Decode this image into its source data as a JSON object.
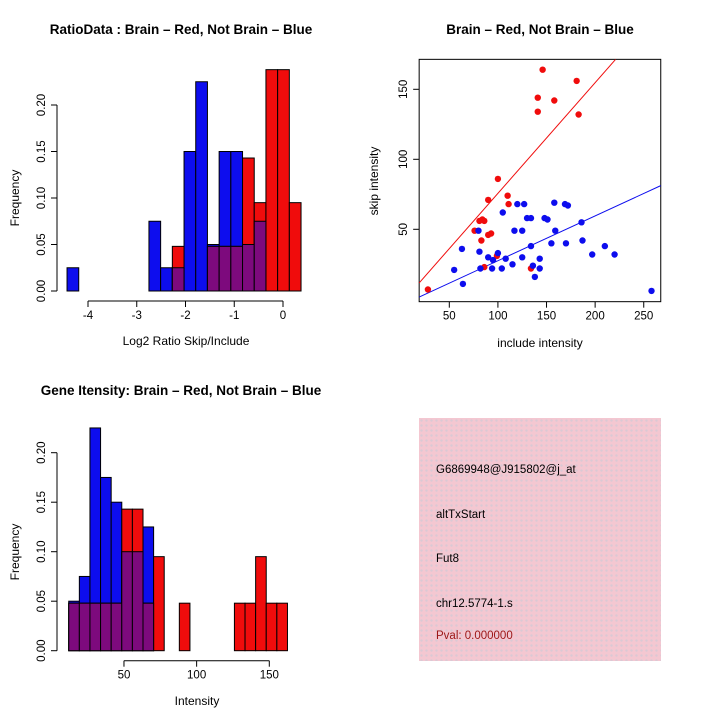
{
  "colors": {
    "red": "#f00c0c",
    "blue": "#0d0dee",
    "purple": "#7d0a7d",
    "dark_red": "#9c1616",
    "pink_background": "#f4c7d1",
    "axis_black": "#000000"
  },
  "chart_data": [
    {
      "id": "ratio_hist",
      "type": "bar",
      "title": "RatioData : Brain – Red, Not Brain – Blue",
      "xlabel": "Log2 Ratio Skip/Include",
      "ylabel": "Frequency",
      "xticks": [
        -4,
        -3,
        -2,
        -1,
        0
      ],
      "yticks": [
        0,
        0.05,
        0.1,
        0.15,
        0.2
      ],
      "ytick_labels": [
        "0.00",
        "0.05",
        "0.10",
        "0.15",
        "0.20"
      ],
      "xlim": [
        -4.64,
        0.39
      ],
      "ylim": [
        0,
        0.246
      ],
      "grid": false,
      "series": [
        {
          "name": "Not Brain (blue)",
          "color_key": "blue",
          "bars": [
            {
              "x0": -4.43,
              "x1": -4.19,
              "h": 0.025
            },
            {
              "x0": -2.75,
              "x1": -2.51,
              "h": 0.075
            },
            {
              "x0": -2.51,
              "x1": -2.27,
              "h": 0.025
            },
            {
              "x0": -2.27,
              "x1": -2.03,
              "h": 0.025
            },
            {
              "x0": -2.03,
              "x1": -1.79,
              "h": 0.15
            },
            {
              "x0": -1.79,
              "x1": -1.55,
              "h": 0.225
            },
            {
              "x0": -1.55,
              "x1": -1.31,
              "h": 0.05
            },
            {
              "x0": -1.31,
              "x1": -1.07,
              "h": 0.15
            },
            {
              "x0": -1.07,
              "x1": -0.83,
              "h": 0.15
            },
            {
              "x0": -0.83,
              "x1": -0.59,
              "h": 0.05
            },
            {
              "x0": -0.59,
              "x1": -0.35,
              "h": 0.075
            }
          ]
        },
        {
          "name": "Brain (red)",
          "color_key": "red",
          "bars": [
            {
              "x0": -2.27,
              "x1": -2.03,
              "h": 0.048
            },
            {
              "x0": -1.55,
              "x1": -1.31,
              "h": 0.048
            },
            {
              "x0": -1.31,
              "x1": -1.07,
              "h": 0.048
            },
            {
              "x0": -1.07,
              "x1": -0.83,
              "h": 0.048
            },
            {
              "x0": -0.83,
              "x1": -0.59,
              "h": 0.143
            },
            {
              "x0": -0.59,
              "x1": -0.35,
              "h": 0.095
            },
            {
              "x0": -0.35,
              "x1": -0.11,
              "h": 0.238
            },
            {
              "x0": -0.11,
              "x1": 0.13,
              "h": 0.238
            },
            {
              "x0": 0.13,
              "x1": 0.37,
              "h": 0.095
            }
          ]
        }
      ]
    },
    {
      "id": "scatter",
      "type": "scatter",
      "title": "Brain – Red, Not Brain – Blue",
      "xlabel": "include intensity",
      "ylabel": "skip intensity",
      "xticks": [
        50,
        100,
        150,
        200,
        250
      ],
      "yticks": [
        50,
        100,
        150
      ],
      "xlim": [
        19,
        267.5
      ],
      "ylim": [
        -1.7,
        171.4
      ],
      "grid": false,
      "series": [
        {
          "name": "Brain (red)",
          "color_key": "red",
          "points": [
            [
              28,
              7
            ],
            [
              76,
              49
            ],
            [
              81,
              56
            ],
            [
              84,
              57
            ],
            [
              86,
              56
            ],
            [
              83,
              42
            ],
            [
              86,
              23
            ],
            [
              90,
              71
            ],
            [
              90,
              46
            ],
            [
              93,
              47
            ],
            [
              99,
              31
            ],
            [
              100,
              86
            ],
            [
              110,
              74
            ],
            [
              111,
              68
            ],
            [
              134,
              22
            ],
            [
              141,
              144
            ],
            [
              141,
              134
            ],
            [
              146,
              164
            ],
            [
              158,
              142
            ],
            [
              181,
              156
            ],
            [
              183,
              132
            ]
          ]
        },
        {
          "name": "Not Brain (blue)",
          "color_key": "blue",
          "points": [
            [
              55,
              21
            ],
            [
              63,
              36
            ],
            [
              64,
              11
            ],
            [
              80,
              49
            ],
            [
              81,
              34
            ],
            [
              82,
              22
            ],
            [
              90,
              30
            ],
            [
              94,
              22
            ],
            [
              95,
              28
            ],
            [
              100,
              33
            ],
            [
              104,
              22
            ],
            [
              105,
              62
            ],
            [
              108,
              29
            ],
            [
              115,
              25
            ],
            [
              117,
              49
            ],
            [
              120,
              68
            ],
            [
              125,
              49
            ],
            [
              125,
              30
            ],
            [
              127,
              68
            ],
            [
              130,
              58
            ],
            [
              134,
              58
            ],
            [
              134,
              38
            ],
            [
              136,
              24
            ],
            [
              138,
              16
            ],
            [
              143,
              22
            ],
            [
              143,
              29
            ],
            [
              148,
              58
            ],
            [
              151,
              57
            ],
            [
              155,
              40
            ],
            [
              158,
              69
            ],
            [
              159,
              49
            ],
            [
              169,
              68
            ],
            [
              170,
              40
            ],
            [
              172,
              67
            ],
            [
              186,
              55
            ],
            [
              187,
              42
            ],
            [
              197,
              32
            ],
            [
              210,
              38
            ],
            [
              220,
              32
            ],
            [
              258,
              6
            ]
          ]
        }
      ],
      "lines": [
        {
          "name": "brain-fit-line",
          "color_key": "red",
          "x1": 19,
          "y1": 11.7,
          "x2": 221,
          "y2": 171.3
        },
        {
          "name": "notbrain-fit-line",
          "color_key": "blue",
          "x1": 19,
          "y1": 1.6,
          "x2": 267.5,
          "y2": 81.2
        }
      ]
    },
    {
      "id": "gene_hist",
      "type": "bar",
      "title": "Gene Itensity: Brain – Red, Not Brain – Blue",
      "xlabel": "Intensity",
      "ylabel": "Frequency",
      "xticks": [
        50,
        100,
        150
      ],
      "yticks": [
        0,
        0.05,
        0.1,
        0.15,
        0.2
      ],
      "ytick_labels": [
        "0.00",
        "0.05",
        "0.10",
        "0.15",
        "0.20"
      ],
      "xlim": [
        6,
        170
      ],
      "ylim": [
        0,
        0.232
      ],
      "grid": false,
      "series": [
        {
          "name": "Not Brain (blue)",
          "color_key": "blue",
          "bars": [
            {
              "x0": 12.0,
              "x1": 19.3,
              "h": 0.05
            },
            {
              "x0": 19.3,
              "x1": 26.6,
              "h": 0.075
            },
            {
              "x0": 26.6,
              "x1": 33.9,
              "h": 0.225
            },
            {
              "x0": 33.9,
              "x1": 41.2,
              "h": 0.175
            },
            {
              "x0": 41.2,
              "x1": 48.5,
              "h": 0.15
            },
            {
              "x0": 48.5,
              "x1": 55.8,
              "h": 0.1
            },
            {
              "x0": 55.8,
              "x1": 63.1,
              "h": 0.1
            },
            {
              "x0": 63.1,
              "x1": 70.4,
              "h": 0.125
            }
          ]
        },
        {
          "name": "Brain (red)",
          "color_key": "red",
          "bars": [
            {
              "x0": 12.0,
              "x1": 19.3,
              "h": 0.048
            },
            {
              "x0": 19.3,
              "x1": 26.6,
              "h": 0.048
            },
            {
              "x0": 26.6,
              "x1": 33.9,
              "h": 0.048
            },
            {
              "x0": 33.9,
              "x1": 41.2,
              "h": 0.048
            },
            {
              "x0": 41.2,
              "x1": 48.5,
              "h": 0.048
            },
            {
              "x0": 48.5,
              "x1": 55.8,
              "h": 0.143
            },
            {
              "x0": 55.8,
              "x1": 63.1,
              "h": 0.143
            },
            {
              "x0": 63.1,
              "x1": 70.4,
              "h": 0.048
            },
            {
              "x0": 70.4,
              "x1": 77.7,
              "h": 0.095
            },
            {
              "x0": 88.1,
              "x1": 95.4,
              "h": 0.048
            },
            {
              "x0": 126.0,
              "x1": 133.3,
              "h": 0.048
            },
            {
              "x0": 133.3,
              "x1": 140.6,
              "h": 0.048
            },
            {
              "x0": 140.6,
              "x1": 147.9,
              "h": 0.095
            },
            {
              "x0": 147.9,
              "x1": 155.2,
              "h": 0.048
            },
            {
              "x0": 155.2,
              "x1": 162.5,
              "h": 0.048
            }
          ]
        }
      ]
    }
  ],
  "info_box": {
    "lines": [
      "G6869948@J915802@j_at",
      "altTxStart",
      "Fut8",
      "chr12.5774-1.s"
    ],
    "pval": "Pval: 0.000000"
  }
}
